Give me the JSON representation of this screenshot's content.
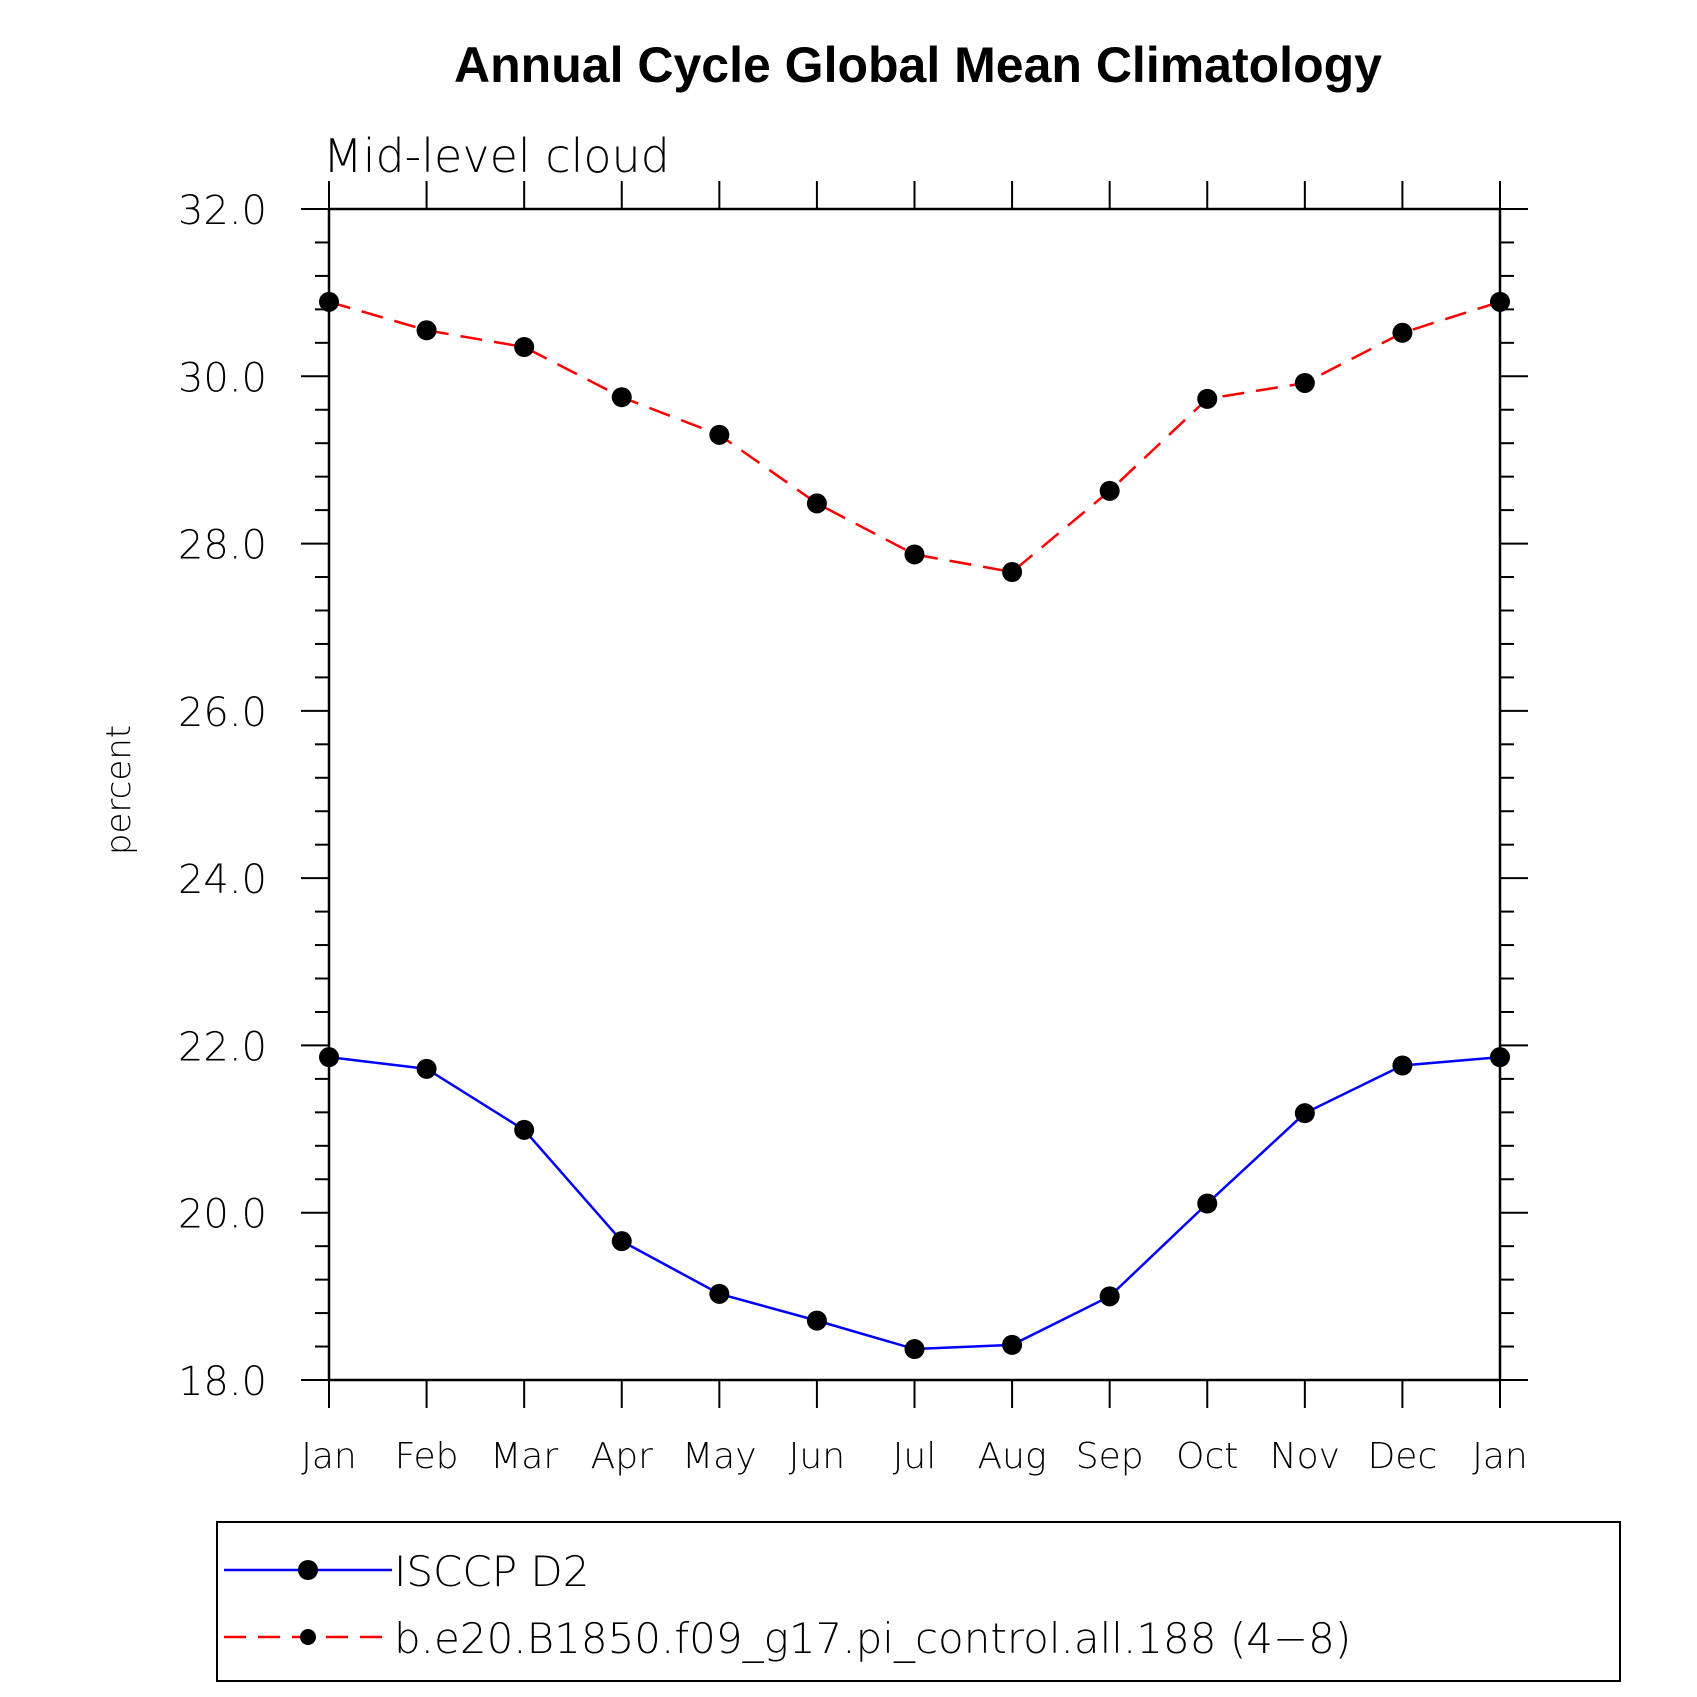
{
  "chart_data": {
    "type": "line",
    "title": "Annual Cycle Global Mean Climatology",
    "subtitle": "Mid-level cloud",
    "xlabel": "",
    "ylabel": "percent",
    "categories": [
      "Jan",
      "Feb",
      "Mar",
      "Apr",
      "May",
      "Jun",
      "Jul",
      "Aug",
      "Sep",
      "Oct",
      "Nov",
      "Dec",
      "Jan"
    ],
    "ylim": [
      18.0,
      32.0
    ],
    "yticks": [
      18.0,
      20.0,
      22.0,
      24.0,
      26.0,
      28.0,
      30.0,
      32.0
    ],
    "ytick_labels": [
      "18.0",
      "20.0",
      "22.0",
      "24.0",
      "26.0",
      "28.0",
      "30.0",
      "32.0"
    ],
    "series": [
      {
        "name": "ISCCP D2",
        "color": "#0000ff",
        "dash": "solid",
        "values": [
          21.86,
          21.72,
          20.99,
          19.66,
          19.03,
          18.71,
          18.37,
          18.42,
          19.0,
          20.11,
          21.19,
          21.76,
          21.86
        ]
      },
      {
        "name": "b.e20.B1850.f09_g17.pi_control.all.188 (4−8)",
        "color": "#ff0000",
        "dash": "dashed",
        "values": [
          30.89,
          30.55,
          30.35,
          29.75,
          29.3,
          28.48,
          27.87,
          27.66,
          28.63,
          29.73,
          29.92,
          30.52,
          30.89
        ]
      }
    ],
    "legend_position": "bottom"
  }
}
